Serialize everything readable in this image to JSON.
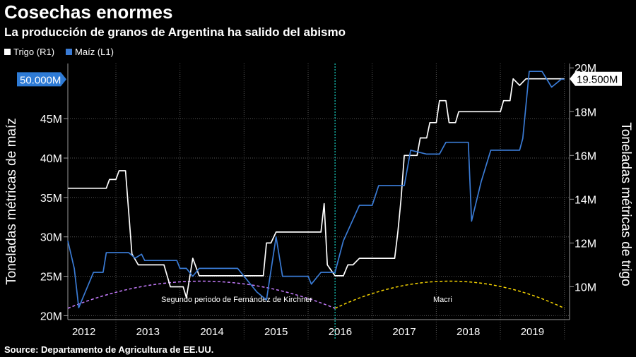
{
  "title": "Cosechas enormes",
  "subtitle": "La producción de granos de Argentina ha salido del abismo",
  "source": "Source: Departamento de Agricultura de EE.UU.",
  "chart_data": {
    "type": "line",
    "legend_position": "top-left",
    "grid": true,
    "left_axis": {
      "label": "Toneladas métricas de maíz",
      "ticks": [
        "20M",
        "25M",
        "30M",
        "35M",
        "40M",
        "45M"
      ],
      "range": [
        19.5,
        52
      ]
    },
    "right_axis": {
      "label": "Toneladas métricas de trigo",
      "ticks": [
        "10M",
        "12M",
        "14M",
        "16M",
        "18M",
        "20M"
      ],
      "range": [
        8.5,
        20.2
      ]
    },
    "x_range": [
      2011.75,
      2019.58
    ],
    "x_ticks": [
      "2012",
      "2013",
      "2014",
      "2015",
      "2016",
      "2017",
      "2018",
      "2019"
    ],
    "callouts": {
      "left": "50.000M",
      "right": "19.500M"
    },
    "periods": [
      {
        "label": "Segundo periodo de Fernández de Kirchner",
        "start": 2011.75,
        "end": 2015.92,
        "color": "#c77dff"
      },
      {
        "label": "Macri",
        "start": 2015.92,
        "end": 2019.5,
        "color": "#f5d300"
      }
    ],
    "divider_x": 2015.92,
    "series": [
      {
        "name": "Trigo (R1)",
        "axis": "right",
        "color": "#ffffff",
        "points": [
          [
            2011.75,
            14.5
          ],
          [
            2012.35,
            14.5
          ],
          [
            2012.4,
            14.9
          ],
          [
            2012.5,
            14.9
          ],
          [
            2012.55,
            15.3
          ],
          [
            2012.65,
            15.3
          ],
          [
            2012.75,
            11.5
          ],
          [
            2012.85,
            11.0
          ],
          [
            2013.15,
            11.0
          ],
          [
            2013.25,
            11.0
          ],
          [
            2013.35,
            10.0
          ],
          [
            2013.55,
            10.0
          ],
          [
            2013.6,
            9.5
          ],
          [
            2013.7,
            11.3
          ],
          [
            2013.8,
            10.5
          ],
          [
            2014.8,
            10.5
          ],
          [
            2014.85,
            12.0
          ],
          [
            2014.92,
            12.0
          ],
          [
            2015.0,
            12.5
          ],
          [
            2015.7,
            12.5
          ],
          [
            2015.75,
            13.8
          ],
          [
            2015.8,
            11.0
          ],
          [
            2015.92,
            10.5
          ],
          [
            2016.05,
            10.5
          ],
          [
            2016.12,
            11.0
          ],
          [
            2016.2,
            11.0
          ],
          [
            2016.3,
            11.3
          ],
          [
            2016.85,
            11.3
          ],
          [
            2016.9,
            12.5
          ],
          [
            2016.95,
            14.0
          ],
          [
            2017.0,
            16.0
          ],
          [
            2017.2,
            16.0
          ],
          [
            2017.25,
            16.8
          ],
          [
            2017.35,
            16.8
          ],
          [
            2017.4,
            17.5
          ],
          [
            2017.5,
            17.5
          ],
          [
            2017.55,
            18.5
          ],
          [
            2017.65,
            18.5
          ],
          [
            2017.7,
            17.5
          ],
          [
            2017.8,
            17.5
          ],
          [
            2017.85,
            18.0
          ],
          [
            2018.5,
            18.0
          ],
          [
            2018.55,
            18.5
          ],
          [
            2018.65,
            18.5
          ],
          [
            2018.7,
            19.5
          ],
          [
            2018.8,
            19.2
          ],
          [
            2018.9,
            19.5
          ],
          [
            2019.5,
            19.5
          ]
        ]
      },
      {
        "name": "Maíz (L1)",
        "axis": "left",
        "color": "#3a7bd5",
        "points": [
          [
            2011.75,
            29.5
          ],
          [
            2011.85,
            26.0
          ],
          [
            2011.92,
            21.0
          ],
          [
            2012.15,
            25.5
          ],
          [
            2012.3,
            25.5
          ],
          [
            2012.35,
            28.0
          ],
          [
            2012.7,
            28.0
          ],
          [
            2012.8,
            27.3
          ],
          [
            2012.9,
            27.8
          ],
          [
            2012.95,
            27.0
          ],
          [
            2013.45,
            27.0
          ],
          [
            2013.5,
            26.0
          ],
          [
            2013.6,
            26.0
          ],
          [
            2013.7,
            25.0
          ],
          [
            2013.8,
            26.0
          ],
          [
            2014.4,
            26.0
          ],
          [
            2014.5,
            25.0
          ],
          [
            2014.7,
            23.0
          ],
          [
            2014.85,
            22.0
          ],
          [
            2015.0,
            30.0
          ],
          [
            2015.1,
            25.0
          ],
          [
            2015.5,
            25.0
          ],
          [
            2015.55,
            24.0
          ],
          [
            2015.7,
            25.5
          ],
          [
            2015.92,
            25.5
          ],
          [
            2016.05,
            29.5
          ],
          [
            2016.3,
            34.0
          ],
          [
            2016.5,
            34.0
          ],
          [
            2016.6,
            36.5
          ],
          [
            2017.0,
            36.5
          ],
          [
            2017.1,
            41.0
          ],
          [
            2017.35,
            40.5
          ],
          [
            2017.55,
            40.5
          ],
          [
            2017.65,
            42.0
          ],
          [
            2018.0,
            42.0
          ],
          [
            2018.05,
            32.0
          ],
          [
            2018.2,
            37.0
          ],
          [
            2018.35,
            41.0
          ],
          [
            2018.8,
            41.0
          ],
          [
            2018.85,
            42.5
          ],
          [
            2018.95,
            51.0
          ],
          [
            2019.15,
            51.0
          ],
          [
            2019.3,
            49.0
          ],
          [
            2019.45,
            50.0
          ],
          [
            2019.5,
            50.0
          ]
        ]
      }
    ]
  }
}
